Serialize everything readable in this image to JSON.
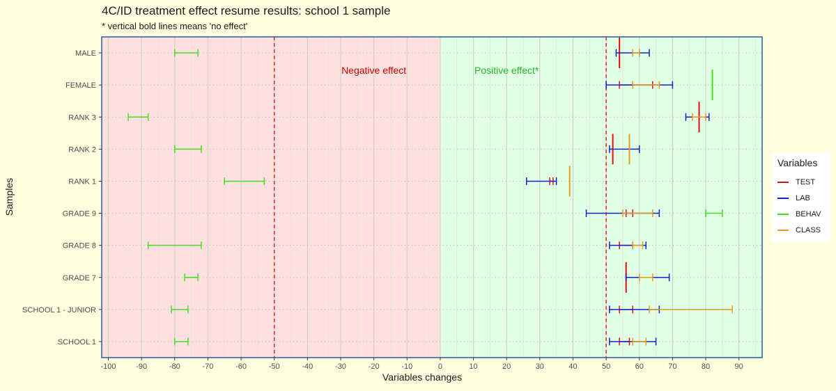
{
  "chart_data": {
    "type": "errorbar",
    "title": "4C/ID treatment effect resume results: school 1 sample",
    "subtitle": "* vertical bold lines means 'no effect'",
    "xlabel": "Variables changes",
    "ylabel": "Samples",
    "xlim": [
      -102,
      97
    ],
    "x_ticks": [
      -100,
      -90,
      -80,
      -70,
      -60,
      -50,
      -40,
      -30,
      -20,
      -10,
      0,
      10,
      20,
      30,
      40,
      50,
      60,
      70,
      80,
      90
    ],
    "x_tick_labels": [
      "-100",
      "-90",
      "-80",
      "-70",
      "-60",
      "-50",
      "-40",
      "-30",
      "-20",
      "-10",
      "0",
      "10",
      "20",
      "30",
      "40",
      "50",
      "60",
      "70",
      "80",
      "90"
    ],
    "categories": [
      "MALE",
      "FEMALE",
      "RANK 3",
      "RANK 2",
      "RANK 1",
      "GRADE 9",
      "GRADE 8",
      "GRADE 7",
      "SCHOOL 1 - JUNIOR",
      "SCHOOL 1"
    ],
    "regions": [
      {
        "label": "Negative effect",
        "from": -102,
        "to": 0,
        "color": "#ffe0e0",
        "text_color": "#cc0000",
        "label_x": -20
      },
      {
        "label": "Positive effect*",
        "from": 0,
        "to": 97,
        "color": "#e0ffe4",
        "text_color": "#22bb22",
        "label_x": 20
      }
    ],
    "reference_lines": [
      -50,
      50
    ],
    "reference_line_color": "#ee2222",
    "legend": {
      "title": "Variables",
      "position": "right"
    },
    "series": [
      {
        "name": "TEST",
        "color": "#dd1111",
        "intervals": [
          {
            "category": "MALE",
            "low": 54,
            "high": 54
          },
          {
            "category": "FEMALE",
            "low": 54,
            "high": 64
          },
          {
            "category": "RANK 3",
            "low": 78,
            "high": 78
          },
          {
            "category": "RANK 2",
            "low": 52,
            "high": 52
          },
          {
            "category": "RANK 1",
            "low": 33,
            "high": 34
          },
          {
            "category": "GRADE 9",
            "low": 56,
            "high": 58
          },
          {
            "category": "GRADE 8",
            "low": 54,
            "high": 58
          },
          {
            "category": "GRADE 7",
            "low": 56,
            "high": 56
          },
          {
            "category": "SCHOOL 1 - JUNIOR",
            "low": 54,
            "high": 58
          },
          {
            "category": "SCHOOL 1",
            "low": 54,
            "high": 57
          }
        ]
      },
      {
        "name": "LAB",
        "color": "#1122cc",
        "intervals": [
          {
            "category": "MALE",
            "low": 53,
            "high": 63
          },
          {
            "category": "FEMALE",
            "low": 50,
            "high": 70
          },
          {
            "category": "RANK 3",
            "low": 74,
            "high": 81
          },
          {
            "category": "RANK 2",
            "low": 51,
            "high": 60
          },
          {
            "category": "RANK 1",
            "low": 26,
            "high": 35
          },
          {
            "category": "GRADE 9",
            "low": 44,
            "high": 66
          },
          {
            "category": "GRADE 8",
            "low": 51,
            "high": 62
          },
          {
            "category": "GRADE 7",
            "low": 56,
            "high": 69
          },
          {
            "category": "SCHOOL 1 - JUNIOR",
            "low": 51,
            "high": 66
          },
          {
            "category": "SCHOOL 1",
            "low": 51,
            "high": 65
          }
        ]
      },
      {
        "name": "BEHAV",
        "color": "#44dd22",
        "intervals": [
          {
            "category": "MALE",
            "low": -80,
            "high": -73
          },
          {
            "category": "FEMALE",
            "low": 82,
            "high": 82
          },
          {
            "category": "RANK 3",
            "low": -94,
            "high": -88
          },
          {
            "category": "RANK 2",
            "low": -80,
            "high": -72
          },
          {
            "category": "RANK 1",
            "low": -65,
            "high": -53
          },
          {
            "category": "GRADE 9",
            "low": 80,
            "high": 85
          },
          {
            "category": "GRADE 8",
            "low": -88,
            "high": -72
          },
          {
            "category": "GRADE 7",
            "low": -77,
            "high": -73
          },
          {
            "category": "SCHOOL 1 - JUNIOR",
            "low": -81,
            "high": -76
          },
          {
            "category": "SCHOOL 1",
            "low": -80,
            "high": -76
          }
        ]
      },
      {
        "name": "CLASS",
        "color": "#e89a1a",
        "intervals": [
          {
            "category": "MALE",
            "low": 58,
            "high": 60
          },
          {
            "category": "FEMALE",
            "low": 58,
            "high": 66
          },
          {
            "category": "RANK 3",
            "low": 76,
            "high": 80
          },
          {
            "category": "RANK 2",
            "low": 57,
            "high": 57
          },
          {
            "category": "RANK 1",
            "low": 39,
            "high": 39
          },
          {
            "category": "GRADE 9",
            "low": 55,
            "high": 64
          },
          {
            "category": "GRADE 8",
            "low": 58,
            "high": 61
          },
          {
            "category": "GRADE 7",
            "low": 60,
            "high": 64
          },
          {
            "category": "SCHOOL 1 - JUNIOR",
            "low": 63,
            "high": 88
          },
          {
            "category": "SCHOOL 1",
            "low": 58,
            "high": 62
          }
        ]
      }
    ]
  }
}
